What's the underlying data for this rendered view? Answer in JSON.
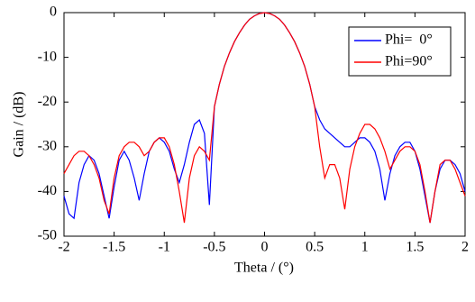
{
  "chart_data": {
    "type": "line",
    "xlabel": "Theta / (°)",
    "ylabel": "Gain / (dB)",
    "x": [
      -2,
      -1.95,
      -1.9,
      -1.85,
      -1.8,
      -1.75,
      -1.7,
      -1.65,
      -1.6,
      -1.55,
      -1.5,
      -1.45,
      -1.4,
      -1.35,
      -1.3,
      -1.25,
      -1.2,
      -1.15,
      -1.1,
      -1.05,
      -1,
      -0.95,
      -0.9,
      -0.85,
      -0.8,
      -0.75,
      -0.7,
      -0.65,
      -0.6,
      -0.55,
      -0.5,
      -0.45,
      -0.4,
      -0.35,
      -0.3,
      -0.25,
      -0.2,
      -0.15,
      -0.1,
      -0.05,
      0,
      0.05,
      0.1,
      0.15,
      0.2,
      0.25,
      0.3,
      0.35,
      0.4,
      0.45,
      0.5,
      0.55,
      0.6,
      0.65,
      0.7,
      0.75,
      0.8,
      0.85,
      0.9,
      0.95,
      1,
      1.05,
      1.1,
      1.15,
      1.2,
      1.25,
      1.3,
      1.35,
      1.4,
      1.45,
      1.5,
      1.55,
      1.6,
      1.65,
      1.7,
      1.75,
      1.8,
      1.85,
      1.9,
      1.95,
      2
    ],
    "series": [
      {
        "name": "Phi=  0°",
        "color": "#0000ff",
        "values": [
          -41,
          -45,
          -46,
          -38,
          -34,
          -32,
          -33,
          -36,
          -41,
          -46,
          -39,
          -33,
          -31,
          -33,
          -37,
          -42,
          -36,
          -31,
          -29,
          -28,
          -29,
          -31,
          -35,
          -38,
          -34,
          -29,
          -25,
          -24,
          -27,
          -43,
          -21,
          -16,
          -12,
          -9,
          -6.5,
          -4.5,
          -2.8,
          -1.5,
          -0.7,
          -0.2,
          0,
          -0.2,
          -0.7,
          -1.5,
          -2.8,
          -4.5,
          -6.5,
          -9,
          -12,
          -16,
          -21,
          -24,
          -26,
          -27,
          -28,
          -29,
          -30,
          -30,
          -29,
          -28,
          -28,
          -29,
          -31,
          -35,
          -42,
          -36,
          -32,
          -30,
          -29,
          -29,
          -31,
          -35,
          -41,
          -47,
          -40,
          -35,
          -33,
          -33,
          -34,
          -36,
          -40
        ]
      },
      {
        "name": "Phi=90°",
        "color": "#ff0000",
        "values": [
          -36,
          -34,
          -32,
          -31,
          -31,
          -32,
          -34,
          -37,
          -42,
          -45,
          -37,
          -32,
          -30,
          -29,
          -29,
          -30,
          -32,
          -31,
          -29,
          -28,
          -28,
          -30,
          -34,
          -40,
          -47,
          -37,
          -32,
          -30,
          -31,
          -33,
          -21,
          -16,
          -12,
          -9,
          -6.5,
          -4.5,
          -2.8,
          -1.5,
          -0.7,
          -0.2,
          0,
          -0.2,
          -0.7,
          -1.5,
          -2.8,
          -4.5,
          -6.5,
          -9,
          -12,
          -16,
          -21,
          -30,
          -37,
          -34,
          -34,
          -37,
          -44,
          -35,
          -30,
          -27,
          -25,
          -25,
          -26,
          -28,
          -31,
          -35,
          -33,
          -31,
          -30,
          -30,
          -31,
          -34,
          -40,
          -47,
          -40,
          -34,
          -33,
          -33,
          -35,
          -38,
          -41
        ]
      }
    ],
    "xlim": [
      -2,
      2
    ],
    "xticks": [
      -2,
      -1.5,
      -1,
      -0.5,
      0,
      0.5,
      1,
      1.5,
      2
    ],
    "ylim": [
      -50,
      0
    ],
    "yticks": [
      0,
      -10,
      -20,
      -30,
      -40,
      -50
    ],
    "grid": false,
    "legend": "upper right"
  }
}
